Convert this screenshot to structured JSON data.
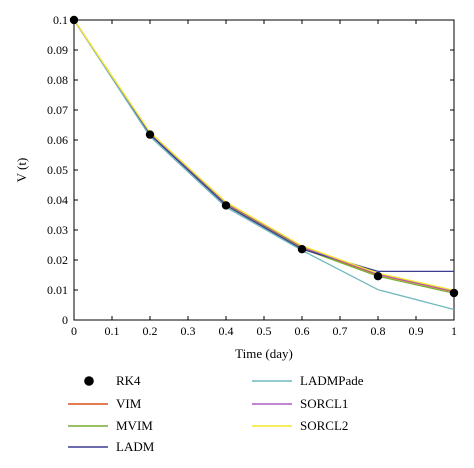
{
  "chart_data": {
    "type": "line",
    "xlabel": "Time (day)",
    "ylabel": "V (t)",
    "xlim": [
      0,
      1
    ],
    "ylim": [
      0,
      0.1
    ],
    "x_ticks": [
      "0",
      "0.1",
      "0.2",
      "0.3",
      "0.4",
      "0.5",
      "0.6",
      "0.7",
      "0.8",
      "0.9",
      "1"
    ],
    "y_ticks": [
      "0",
      "0.01",
      "0.02",
      "0.03",
      "0.04",
      "0.05",
      "0.06",
      "0.07",
      "0.08",
      "0.09",
      "0.1"
    ],
    "grid": false,
    "legend_position": "bottom",
    "series": [
      {
        "name": "RK4",
        "style": "marker",
        "color": "#000000",
        "x": [
          0,
          0.2,
          0.4,
          0.6,
          0.8,
          1.0
        ],
        "y": [
          0.1,
          0.0618,
          0.0382,
          0.0236,
          0.0146,
          0.009
        ]
      },
      {
        "name": "VIM",
        "style": "line",
        "color": "#d95319",
        "x": [
          0,
          0.2,
          0.4,
          0.6,
          0.8,
          1.0
        ],
        "y": [
          0.1,
          0.0622,
          0.0388,
          0.0242,
          0.0151,
          0.0094
        ]
      },
      {
        "name": "MVIM",
        "style": "line",
        "color": "#77ac30",
        "x": [
          0,
          0.2,
          0.4,
          0.6,
          0.8,
          1.0
        ],
        "y": [
          0.1,
          0.062,
          0.0384,
          0.0238,
          0.0146,
          0.0089
        ]
      },
      {
        "name": "LADM",
        "style": "line",
        "color": "#3b3b8f",
        "x": [
          0,
          0.2,
          0.4,
          0.6,
          0.8,
          1.0
        ],
        "y": [
          0.1,
          0.0618,
          0.0382,
          0.0236,
          0.0162,
          0.0162
        ]
      },
      {
        "name": "LADMPade",
        "style": "line",
        "color": "#6fb8bf",
        "x": [
          0,
          0.2,
          0.4,
          0.6,
          0.8,
          1.0
        ],
        "y": [
          0.1,
          0.0612,
          0.0376,
          0.0232,
          0.0101,
          0.0035
        ]
      },
      {
        "name": "SORCL1",
        "style": "line",
        "color": "#b05cc6",
        "x": [
          0,
          0.2,
          0.4,
          0.6,
          0.8,
          1.0
        ],
        "y": [
          0.1,
          0.0624,
          0.039,
          0.0244,
          0.0153,
          0.0096
        ]
      },
      {
        "name": "SORCL2",
        "style": "line",
        "color": "#f2e92a",
        "x": [
          0,
          0.2,
          0.4,
          0.6,
          0.8,
          1.0
        ],
        "y": [
          0.1,
          0.0626,
          0.0393,
          0.0247,
          0.0156,
          0.0099
        ]
      }
    ]
  }
}
